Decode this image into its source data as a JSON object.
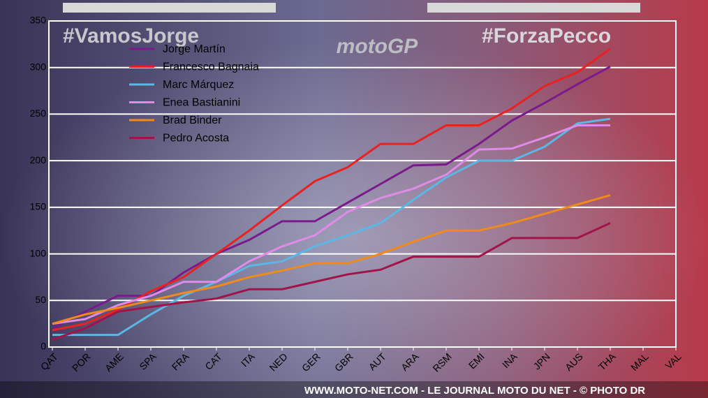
{
  "chart_data": {
    "type": "line",
    "annotations": [
      "#VamosJorge",
      "#ForzaPecco",
      "motoGP"
    ],
    "footer": "WWW.MOTO-NET.COM - LE JOURNAL MOTO DU NET - © PHOTO DR",
    "categories": [
      "QAT",
      "POR",
      "AME",
      "SPA",
      "FRA",
      "CAT",
      "ITA",
      "NED",
      "GER",
      "GBR",
      "AUT",
      "ARA",
      "RSM",
      "EMI",
      "INA",
      "JPN",
      "AUS",
      "THA",
      "MAL",
      "VAL"
    ],
    "series": [
      {
        "name": "Jorge Martín",
        "color": "#7a1a8c",
        "values": [
          20,
          38,
          55,
          55,
          80,
          100,
          115,
          135,
          135,
          155,
          175,
          195,
          196,
          218,
          243,
          262,
          282,
          301,
          null,
          null
        ]
      },
      {
        "name": "Francesco Bagnaia",
        "color": "#e82222",
        "values": [
          18,
          25,
          40,
          60,
          75,
          100,
          125,
          152,
          178,
          193,
          218,
          218,
          238,
          238,
          256,
          280,
          295,
          320,
          null,
          null
        ]
      },
      {
        "name": "Marc Márquez",
        "color": "#5bb7e6",
        "values": [
          13,
          13,
          13,
          35,
          55,
          70,
          87,
          92,
          108,
          120,
          133,
          158,
          182,
          200,
          200,
          215,
          240,
          245,
          null,
          null
        ]
      },
      {
        "name": "Enea Bastianini",
        "color": "#e08be8",
        "values": [
          25,
          30,
          45,
          55,
          70,
          70,
          92,
          108,
          120,
          145,
          160,
          170,
          185,
          212,
          213,
          225,
          238,
          238,
          null,
          null
        ]
      },
      {
        "name": "Brad Binder",
        "color": "#f08a1a",
        "values": [
          25,
          35,
          42,
          50,
          58,
          65,
          75,
          82,
          90,
          90,
          100,
          113,
          125,
          125,
          133,
          143,
          153,
          163,
          null,
          null
        ]
      },
      {
        "name": "Pedro Acosta",
        "color": "#a0144a",
        "values": [
          8,
          20,
          38,
          43,
          48,
          52,
          62,
          62,
          70,
          78,
          83,
          97,
          97,
          97,
          117,
          117,
          117,
          133,
          null,
          null
        ]
      }
    ],
    "ylim": [
      0,
      350
    ],
    "yticks": [
      0,
      50,
      100,
      150,
      200,
      250,
      300,
      350
    ],
    "grid": true,
    "legend": "upper left"
  }
}
